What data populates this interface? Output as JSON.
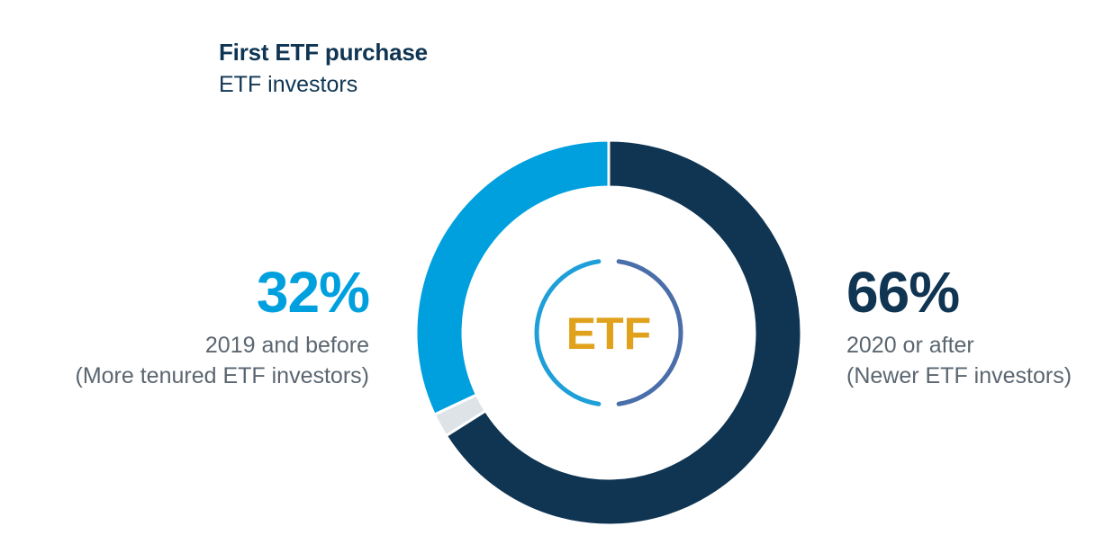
{
  "title": "First ETF purchase",
  "subtitle": "ETF investors",
  "center_label": "ETF",
  "colors": {
    "newer": "#0f3553",
    "tenured": "#00a0df",
    "other": "#dde3e7",
    "center_text": "#e0a21d",
    "center_ring_left": "#1e9fd8",
    "center_ring_right": "#4a6ea9"
  },
  "chart_data": {
    "type": "pie",
    "donut": true,
    "slices": [
      {
        "label": "2020 or after",
        "note": "(Newer ETF investors)",
        "value": 66,
        "display": "66%"
      },
      {
        "label": "",
        "note": "",
        "value": 2,
        "display": ""
      },
      {
        "label": "2019 and before",
        "note": "(More tenured ETF investors)",
        "value": 32,
        "display": "32%"
      }
    ]
  }
}
